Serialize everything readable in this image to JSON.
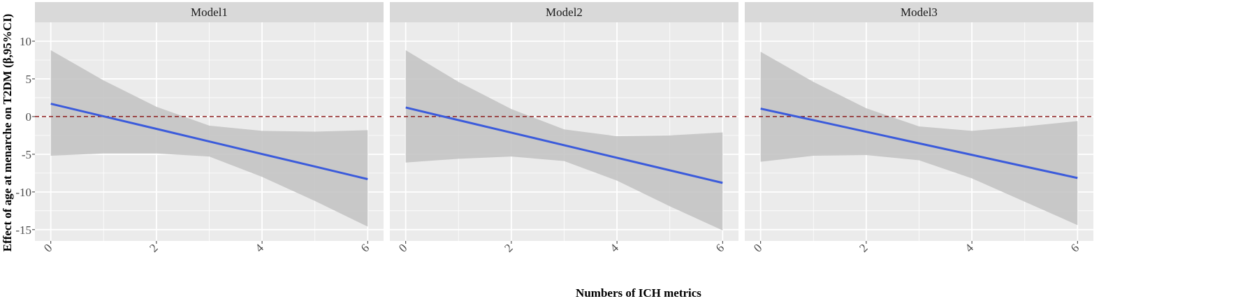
{
  "chart_data": {
    "type": "line",
    "ylabel": "Effect of age at menarche on T2DM (β,95%CI)",
    "xlabel": "Numbers of ICH metrics",
    "xlim": [
      -0.3,
      6.3
    ],
    "ylim": [
      -16.5,
      12.5
    ],
    "x_ticks": [
      0,
      2,
      4,
      6
    ],
    "y_ticks": [
      10,
      5,
      0,
      -5,
      -10,
      -15
    ],
    "reference_line": {
      "y": 0,
      "style": "dashed",
      "color": "#8b1a1a"
    },
    "grid": true,
    "colors": {
      "line": "#3b5bdb",
      "ribbon": "#c2c2c2",
      "panel": "#ebebeb",
      "strip": "#d9d9d9",
      "grid": "#ffffff"
    },
    "facets": [
      {
        "name": "Model1",
        "x": [
          0,
          1,
          2,
          3,
          4,
          5,
          6
        ],
        "fit": [
          1.7,
          0.03,
          -1.63,
          -3.3,
          -4.97,
          -6.63,
          -8.3
        ],
        "upper": [
          8.8,
          4.8,
          1.3,
          -1.2,
          -1.9,
          -2.0,
          -1.8
        ],
        "lower": [
          -5.2,
          -4.9,
          -4.9,
          -5.3,
          -8.0,
          -11.2,
          -14.6
        ]
      },
      {
        "name": "Model2",
        "x": [
          0,
          1,
          2,
          3,
          4,
          5,
          6
        ],
        "fit": [
          1.2,
          -0.47,
          -2.13,
          -3.8,
          -5.47,
          -7.13,
          -8.8
        ],
        "upper": [
          8.8,
          4.6,
          1.0,
          -1.7,
          -2.6,
          -2.5,
          -2.1
        ],
        "lower": [
          -6.1,
          -5.6,
          -5.3,
          -5.9,
          -8.5,
          -11.9,
          -15.1
        ]
      },
      {
        "name": "Model3",
        "x": [
          0,
          1,
          2,
          3,
          4,
          5,
          6
        ],
        "fit": [
          1.05,
          -0.48,
          -2.02,
          -3.55,
          -5.08,
          -6.62,
          -8.15
        ],
        "upper": [
          8.6,
          4.6,
          1.1,
          -1.3,
          -1.9,
          -1.3,
          -0.6
        ],
        "lower": [
          -6.0,
          -5.2,
          -5.1,
          -5.8,
          -8.2,
          -11.3,
          -14.4
        ]
      }
    ]
  }
}
